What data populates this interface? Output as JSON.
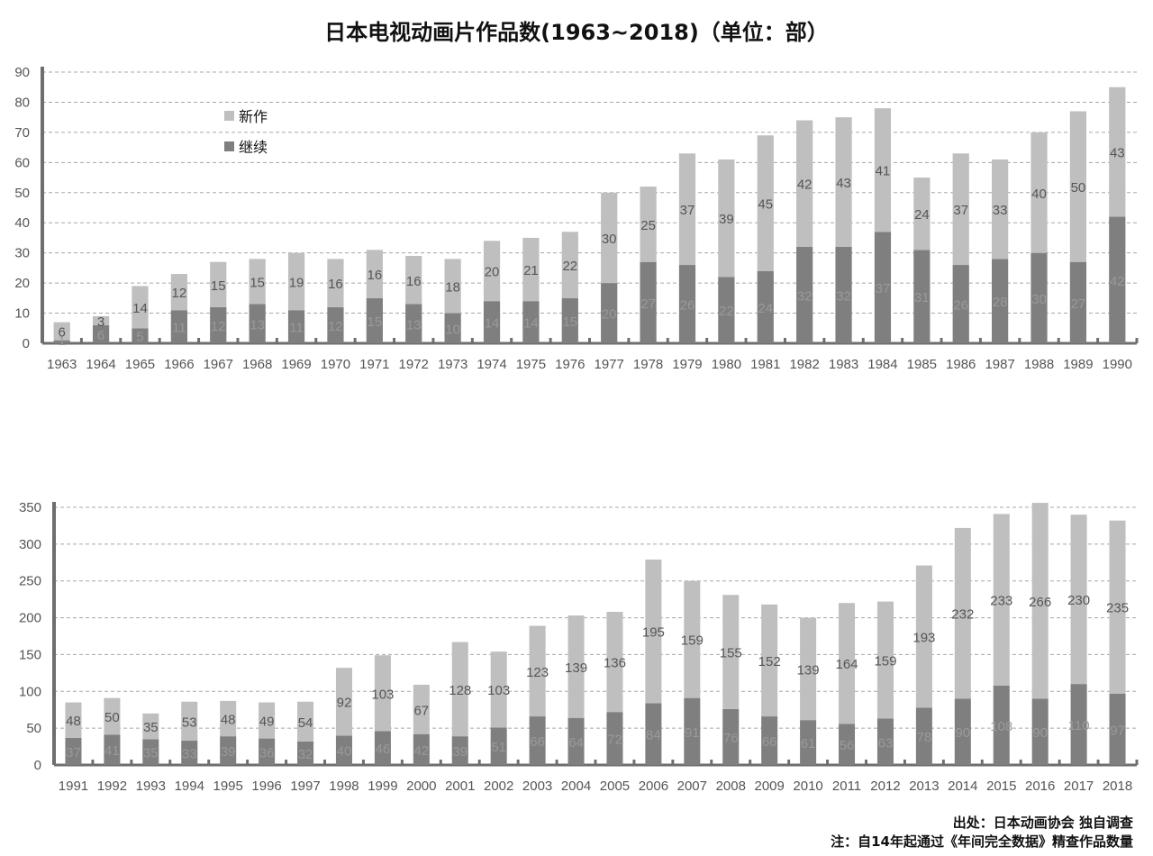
{
  "title": "日本电视动画片作品数(1963~2018)（单位：部）",
  "legend": {
    "new": "新作",
    "cont": "继续"
  },
  "source": "出处：日本动画协会 独自调查",
  "note": "注：自14年起通过《年间完全数据》精查作品数量",
  "colors": {
    "new": "#bfbfbf",
    "cont": "#7f7f7f",
    "axis": "#6e6e6e",
    "grid": "#a8a8a8",
    "label_light": "#555555",
    "label_dark": "#9a9a9a"
  },
  "chart_data": [
    {
      "type": "bar",
      "stacked": true,
      "categories": [
        "1963",
        "1964",
        "1965",
        "1966",
        "1967",
        "1968",
        "1969",
        "1970",
        "1971",
        "1972",
        "1973",
        "1974",
        "1975",
        "1976",
        "1977",
        "1978",
        "1979",
        "1980",
        "1981",
        "1982",
        "1983",
        "1984",
        "1985",
        "1986",
        "1987",
        "1988",
        "1989",
        "1990"
      ],
      "series": [
        {
          "name": "继续",
          "values": [
            1,
            6,
            5,
            11,
            12,
            13,
            11,
            12,
            15,
            13,
            10,
            14,
            14,
            15,
            20,
            27,
            26,
            22,
            24,
            32,
            32,
            37,
            31,
            26,
            28,
            30,
            27,
            42
          ],
          "labels": [
            "1",
            "6",
            "5",
            "11",
            "12",
            "13",
            "11",
            "12",
            "15",
            "13",
            "10",
            "14",
            "14",
            "15",
            "20",
            "27",
            "26",
            "22",
            "24",
            "32",
            "32",
            "37",
            "31",
            "26",
            "28",
            "30",
            "27",
            "42"
          ]
        },
        {
          "name": "新作",
          "values": [
            6,
            3,
            14,
            12,
            15,
            15,
            19,
            16,
            16,
            16,
            18,
            20,
            21,
            22,
            30,
            25,
            37,
            39,
            45,
            42,
            43,
            41,
            24,
            37,
            33,
            40,
            50,
            43
          ],
          "labels": [
            "6",
            "3",
            "14",
            "12",
            "15",
            "15",
            "19",
            "16",
            "16",
            "16",
            "18",
            "20",
            "21",
            "22",
            "30",
            "25",
            "37",
            "39",
            "45",
            "42",
            "43",
            "41",
            "24",
            "37",
            "33",
            "40",
            "50",
            "43"
          ]
        }
      ],
      "yticks": [
        "0",
        "10",
        "20",
        "30",
        "40",
        "50",
        "60",
        "70",
        "80",
        "90"
      ],
      "ylim": [
        0,
        90
      ],
      "grid": true,
      "legend_position": "top-left"
    },
    {
      "type": "bar",
      "stacked": true,
      "categories": [
        "1991",
        "1992",
        "1993",
        "1994",
        "1995",
        "1996",
        "1997",
        "1998",
        "1999",
        "2000",
        "2001",
        "2002",
        "2003",
        "2004",
        "2005",
        "2006",
        "2007",
        "2008",
        "2009",
        "2010",
        "2011",
        "2012",
        "2013",
        "2014",
        "2015",
        "2016",
        "2017",
        "2018"
      ],
      "series": [
        {
          "name": "继续",
          "values": [
            37,
            41,
            35,
            33,
            39,
            36,
            32,
            40,
            46,
            42,
            39,
            51,
            66,
            64,
            72,
            84,
            91,
            76,
            66,
            61,
            56,
            63,
            78,
            90,
            108,
            90,
            110,
            97
          ],
          "labels": [
            "37",
            "41",
            "35",
            "33",
            "39",
            "36",
            "32",
            "40",
            "46",
            "42",
            "39",
            "51",
            "66",
            "64",
            "72",
            "84",
            "91",
            "76",
            "66",
            "61",
            "56",
            "63",
            "78",
            "90",
            "108",
            "90",
            "110",
            "97"
          ]
        },
        {
          "name": "新作",
          "values": [
            48,
            50,
            35,
            53,
            48,
            49,
            54,
            92,
            103,
            67,
            128,
            103,
            123,
            139,
            136,
            195,
            159,
            155,
            152,
            139,
            164,
            159,
            193,
            232,
            233,
            266,
            230,
            235
          ],
          "labels": [
            "48",
            "50",
            "35",
            "53",
            "48",
            "49",
            "54",
            "92",
            "103",
            "67",
            "128",
            "103",
            "123",
            "139",
            "136",
            "195",
            "159",
            "155",
            "152",
            "139",
            "164",
            "159",
            "193",
            "232",
            "233",
            "266",
            "230",
            "235"
          ]
        }
      ],
      "yticks": [
        "0",
        "50",
        "100",
        "150",
        "200",
        "250",
        "300",
        "350"
      ],
      "ylim": [
        0,
        350
      ],
      "grid": true
    }
  ]
}
